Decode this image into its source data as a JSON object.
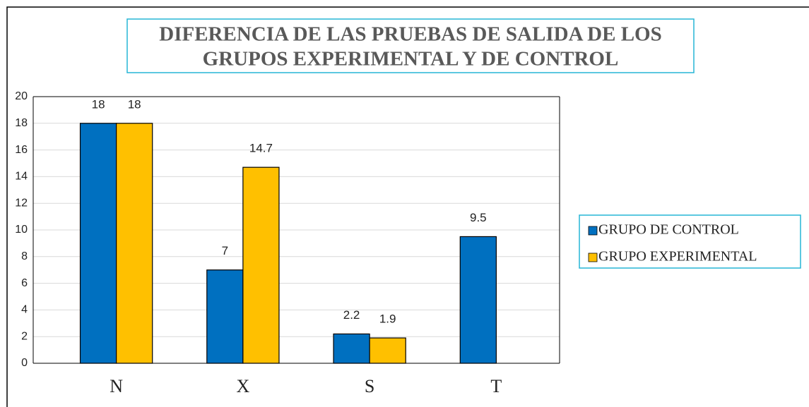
{
  "chart_data": {
    "type": "bar",
    "title_lines": [
      "DIFERENCIA DE LAS PRUEBAS DE SALIDA DE LOS",
      "GRUPOS EXPERIMENTAL Y DE CONTROL"
    ],
    "categories": [
      "N",
      "X",
      "S",
      "T"
    ],
    "series": [
      {
        "name": "GRUPO DE CONTROL",
        "color": "#0070c0",
        "values": [
          18,
          7,
          2.2,
          9.5
        ]
      },
      {
        "name": "GRUPO EXPERIMENTAL",
        "color": "#ffc000",
        "values": [
          18,
          14.7,
          1.9,
          null
        ]
      }
    ],
    "ylim": [
      0,
      20
    ],
    "yticks": [
      0,
      2,
      4,
      6,
      8,
      10,
      12,
      14,
      16,
      18,
      20
    ],
    "grid": true,
    "legend": "right"
  }
}
